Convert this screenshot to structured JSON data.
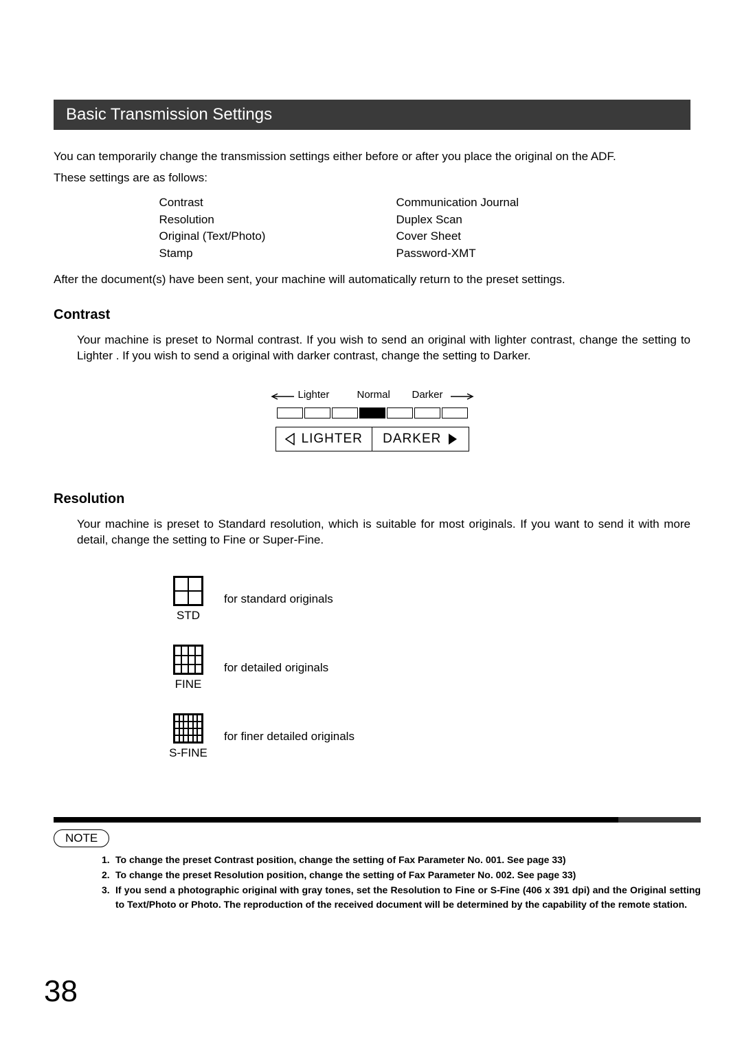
{
  "title": "Basic Transmission Settings",
  "intro1": "You can temporarily change the transmission settings either before or after you place the original on the ADF.",
  "intro2": "These settings are as follows:",
  "settings_left": [
    "Contrast",
    "Resolution",
    "Original (Text/Photo)",
    "Stamp"
  ],
  "settings_right": [
    "Communication Journal",
    "Duplex Scan",
    "Cover Sheet",
    "Password-XMT"
  ],
  "after": "After the document(s) have been sent, your machine will automatically return to the preset settings.",
  "contrast": {
    "heading": "Contrast",
    "body": "Your machine is preset to Normal  contrast.  If you wish to send an original with lighter contrast, change the setting to Lighter .  If you wish to send a original with darker contrast, change the setting to Darker.",
    "scale_labels": {
      "lighter": "Lighter",
      "normal": "Normal",
      "darker": "Darker"
    },
    "buttons": {
      "lighter": "LIGHTER",
      "darker": "DARKER"
    },
    "box_count": 7,
    "filled_index": 3
  },
  "resolution": {
    "heading": "Resolution",
    "body": "Your machine is preset to Standard resolution, which is suitable for most originals.  If you want to send it with more detail, change the setting to Fine or Super-Fine.",
    "items": [
      {
        "label": "STD",
        "desc": "for standard originals",
        "grid": "std",
        "cells": 4
      },
      {
        "label": "FINE",
        "desc": "for detailed originals",
        "grid": "fine",
        "cells": 12
      },
      {
        "label": "S-FINE",
        "desc": "for finer detailed originals",
        "grid": "sfine",
        "cells": 24
      }
    ]
  },
  "note": {
    "label": "NOTE",
    "items": [
      {
        "num": "1.",
        "text": "To change the preset Contrast position, change the setting of Fax Parameter No. 001.  See page 33)"
      },
      {
        "num": "2.",
        "text": "To change the preset Resolution position, change the setting of Fax Parameter No. 002.  See page 33)"
      },
      {
        "num": "3.",
        "text": "If you send a photographic original with gray tones, set the Resolution to Fine or S-Fine (406 x 391 dpi) and the Original setting to Text/Photo or Photo.  The reproduction of the received document will be determined by the capability of the remote station."
      }
    ]
  },
  "page_number": "38"
}
